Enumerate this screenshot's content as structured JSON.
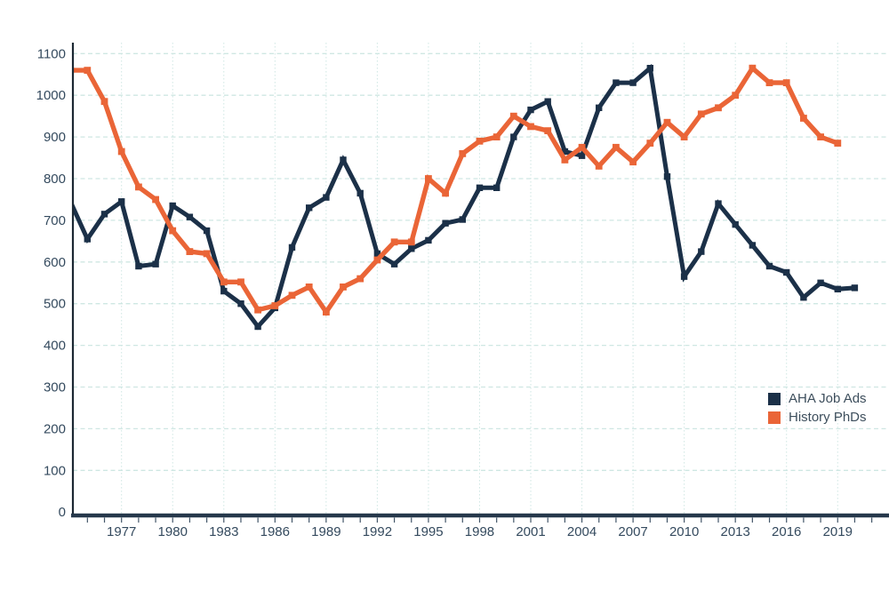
{
  "chart_data": {
    "type": "line",
    "title": "",
    "xlabel": "",
    "ylabel": "",
    "x": [
      1974,
      1975,
      1976,
      1977,
      1978,
      1979,
      1980,
      1981,
      1982,
      1983,
      1984,
      1985,
      1986,
      1987,
      1988,
      1989,
      1990,
      1991,
      1992,
      1993,
      1994,
      1995,
      1996,
      1997,
      1998,
      1999,
      2000,
      2001,
      2002,
      2003,
      2004,
      2005,
      2006,
      2007,
      2008,
      2009,
      2010,
      2011,
      2012,
      2013,
      2014,
      2015,
      2016,
      2017,
      2018,
      2019,
      2020
    ],
    "series": [
      {
        "name": "AHA Job Ads",
        "color": "#1b3048",
        "values": [
          745,
          655,
          715,
          745,
          590,
          595,
          735,
          708,
          675,
          530,
          500,
          445,
          490,
          635,
          730,
          755,
          845,
          765,
          620,
          595,
          632,
          652,
          693,
          702,
          778,
          778,
          900,
          965,
          985,
          865,
          855,
          970,
          1030,
          1030,
          1065,
          805,
          565,
          625,
          740,
          690,
          640,
          590,
          575,
          515,
          550,
          535,
          538
        ]
      },
      {
        "name": "History PhDs",
        "color": "#ea6537",
        "values": [
          1060,
          1060,
          985,
          865,
          780,
          750,
          675,
          625,
          620,
          552,
          552,
          485,
          495,
          520,
          540,
          480,
          540,
          560,
          605,
          648,
          648,
          800,
          765,
          860,
          890,
          900,
          950,
          925,
          915,
          845,
          875,
          830,
          875,
          840,
          885,
          935,
          900,
          955,
          970,
          1000,
          1065,
          1030,
          1030,
          945,
          900,
          885,
          null
        ]
      }
    ],
    "ylim": [
      0,
      1100
    ],
    "y_ticks": [
      0,
      100,
      200,
      300,
      400,
      500,
      600,
      700,
      800,
      900,
      1000,
      1100
    ],
    "x_tick_labels": [
      1977,
      1980,
      1983,
      1986,
      1989,
      1992,
      1995,
      1998,
      2001,
      2004,
      2007,
      2010,
      2013,
      2016,
      2019
    ],
    "minor_x_ticks_every_year": true,
    "grid": true,
    "legend_position": "middle-right"
  },
  "legend": {
    "items": [
      {
        "label": "AHA Job Ads",
        "color": "#1b3048"
      },
      {
        "label": "History PhDs",
        "color": "#ea6537"
      }
    ]
  },
  "colors": {
    "background": "#ffffff",
    "gridline": "#cfe7e3",
    "x_axis_line": "#26384b",
    "y_axis_line": "#1c2833",
    "tick_text": "#344a5e",
    "legend_text": "#3d4e5c"
  }
}
